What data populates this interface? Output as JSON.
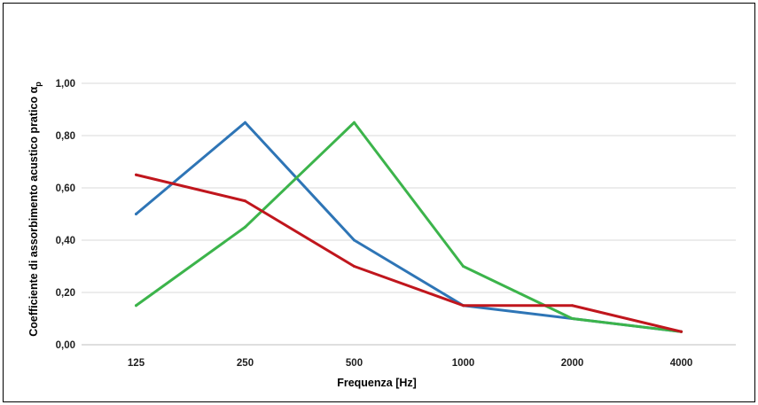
{
  "chart_data": {
    "type": "line",
    "title": "",
    "xlabel": "Frequenza [Hz]",
    "ylabel": "Coefficiente di assorbimento acustico pratico α",
    "ylabel_subscript": "p",
    "categories": [
      "125",
      "250",
      "500",
      "1000",
      "2000",
      "4000"
    ],
    "ylim": [
      0,
      1
    ],
    "yticks": [
      "0,00",
      "0,20",
      "0,40",
      "0,60",
      "0,80",
      "1,00"
    ],
    "grid": true,
    "legend": "none",
    "series": [
      {
        "color": "#2e75b6",
        "values": [
          0.5,
          0.85,
          0.4,
          0.15,
          0.1,
          0.05
        ]
      },
      {
        "color": "#3cb44b",
        "values": [
          0.15,
          0.45,
          0.85,
          0.3,
          0.1,
          0.05
        ]
      },
      {
        "color": "#c0161d",
        "values": [
          0.65,
          0.55,
          0.3,
          0.15,
          0.15,
          0.05
        ]
      }
    ]
  }
}
